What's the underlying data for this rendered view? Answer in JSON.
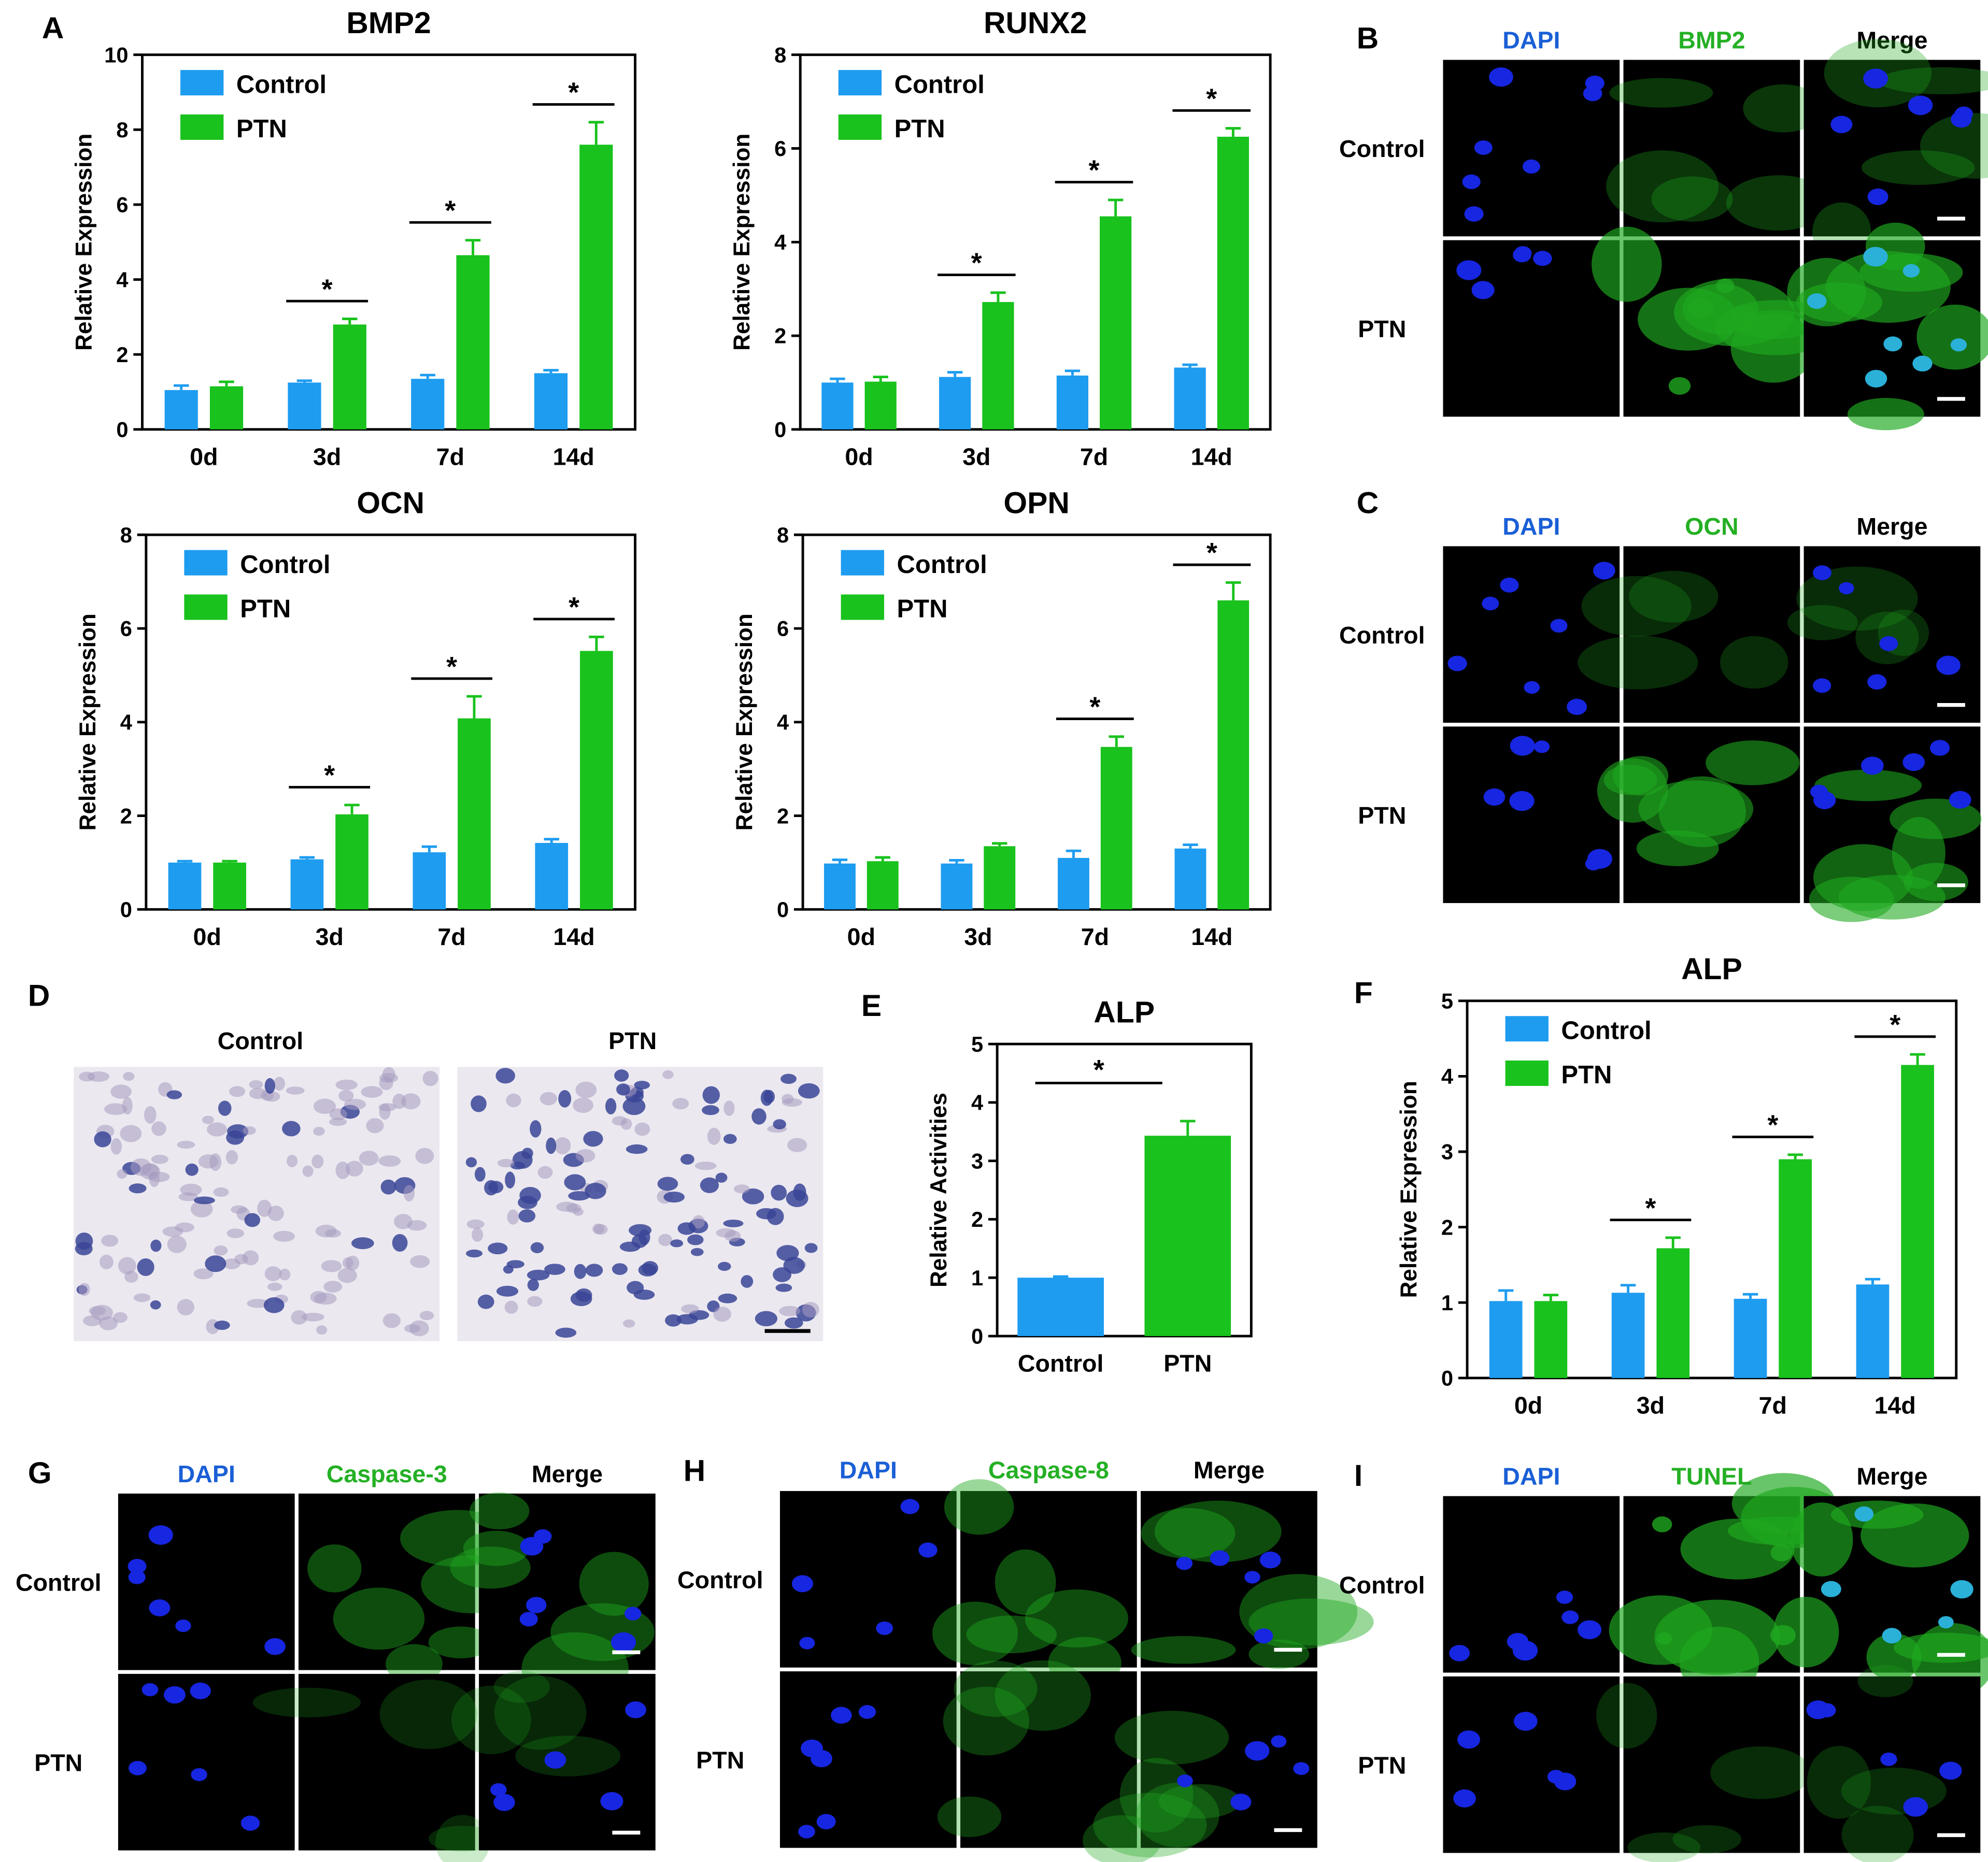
{
  "colors": {
    "control": "#1e9cf0",
    "ptn": "#19c21d",
    "dapi_text": "#1a5fd6",
    "green_text": "#24b024",
    "nucleus": "#1726e0",
    "merge_nucleus": "#2bb0d8",
    "green_cyto": "#1fa81f",
    "alp_bg": "#ebe8f0",
    "alp_cell": "#3a4596"
  },
  "panel_letters": [
    "A",
    "B",
    "C",
    "D",
    "E",
    "F",
    "G",
    "H",
    "I"
  ],
  "legend": {
    "control": "Control",
    "ptn": "PTN"
  },
  "significance_mark": "*",
  "chart_data": [
    {
      "id": "bmp2",
      "type": "bar",
      "title": "BMP2",
      "ylabel": "Relative Expression",
      "categories": [
        "0d",
        "3d",
        "7d",
        "14d"
      ],
      "ylim": [
        0,
        10
      ],
      "yticks": [
        0,
        2,
        4,
        6,
        8,
        10
      ],
      "series": [
        {
          "name": "Control",
          "values": [
            1.05,
            1.25,
            1.35,
            1.5
          ],
          "errors": [
            0.12,
            0.05,
            0.1,
            0.08
          ]
        },
        {
          "name": "PTN",
          "values": [
            1.15,
            2.8,
            4.65,
            7.6
          ],
          "errors": [
            0.12,
            0.15,
            0.4,
            0.6
          ]
        }
      ],
      "significant": [
        false,
        true,
        true,
        true
      ]
    },
    {
      "id": "runx2",
      "type": "bar",
      "title": "RUNX2",
      "ylabel": "Relative Expression",
      "categories": [
        "0d",
        "3d",
        "7d",
        "14d"
      ],
      "ylim": [
        0,
        8
      ],
      "yticks": [
        0,
        2,
        4,
        6,
        8
      ],
      "series": [
        {
          "name": "Control",
          "values": [
            1.0,
            1.12,
            1.15,
            1.32
          ],
          "errors": [
            0.08,
            0.1,
            0.1,
            0.06
          ]
        },
        {
          "name": "PTN",
          "values": [
            1.02,
            2.72,
            4.55,
            6.25
          ],
          "errors": [
            0.1,
            0.2,
            0.35,
            0.18
          ]
        }
      ],
      "significant": [
        false,
        true,
        true,
        true
      ]
    },
    {
      "id": "ocn",
      "type": "bar",
      "title": "OCN",
      "ylabel": "Relative Expression",
      "categories": [
        "0d",
        "3d",
        "7d",
        "14d"
      ],
      "ylim": [
        0,
        8
      ],
      "yticks": [
        0,
        2,
        4,
        6,
        8
      ],
      "series": [
        {
          "name": "Control",
          "values": [
            1.0,
            1.07,
            1.22,
            1.42
          ],
          "errors": [
            0.03,
            0.04,
            0.12,
            0.08
          ]
        },
        {
          "name": "PTN",
          "values": [
            1.0,
            2.03,
            4.08,
            5.52
          ],
          "errors": [
            0.03,
            0.2,
            0.47,
            0.3
          ]
        }
      ],
      "significant": [
        false,
        true,
        true,
        true
      ]
    },
    {
      "id": "opn",
      "type": "bar",
      "title": "OPN",
      "ylabel": "Relative Expression",
      "categories": [
        "0d",
        "3d",
        "7d",
        "14d"
      ],
      "ylim": [
        0,
        8
      ],
      "yticks": [
        0,
        2,
        4,
        6,
        8
      ],
      "series": [
        {
          "name": "Control",
          "values": [
            0.98,
            0.98,
            1.1,
            1.3
          ],
          "errors": [
            0.08,
            0.07,
            0.15,
            0.08
          ]
        },
        {
          "name": "PTN",
          "values": [
            1.03,
            1.35,
            3.47,
            6.6
          ],
          "errors": [
            0.08,
            0.06,
            0.22,
            0.38
          ]
        }
      ],
      "significant": [
        false,
        false,
        true,
        true
      ]
    },
    {
      "id": "alp_activity",
      "type": "bar",
      "title": "ALP",
      "ylabel": "Relative Activities",
      "categories": [
        "Control",
        "PTN"
      ],
      "ylim": [
        0,
        5
      ],
      "yticks": [
        0,
        1,
        2,
        3,
        4,
        5
      ],
      "values": [
        1.0,
        3.43
      ],
      "errors": [
        0.02,
        0.25
      ],
      "significant": true
    },
    {
      "id": "alp_expression",
      "type": "bar",
      "title": "ALP",
      "ylabel": "Relative Expression",
      "categories": [
        "0d",
        "3d",
        "7d",
        "14d"
      ],
      "ylim": [
        0,
        5
      ],
      "yticks": [
        0,
        1,
        2,
        3,
        4,
        5
      ],
      "series": [
        {
          "name": "Control",
          "values": [
            1.02,
            1.13,
            1.05,
            1.24
          ],
          "errors": [
            0.14,
            0.1,
            0.06,
            0.07
          ]
        },
        {
          "name": "PTN",
          "values": [
            1.02,
            1.72,
            2.9,
            4.15
          ],
          "errors": [
            0.08,
            0.14,
            0.06,
            0.14
          ]
        }
      ],
      "significant": [
        false,
        true,
        true,
        true
      ]
    }
  ],
  "micrographs": {
    "B": {
      "headers": [
        "DAPI",
        "BMP2",
        "Merge"
      ],
      "rows": [
        "Control",
        "PTN"
      ]
    },
    "C": {
      "headers": [
        "DAPI",
        "OCN",
        "Merge"
      ],
      "rows": [
        "Control",
        "PTN"
      ]
    },
    "D": {
      "labels": [
        "Control",
        "PTN"
      ]
    },
    "G": {
      "headers": [
        "DAPI",
        "Caspase-3",
        "Merge"
      ],
      "rows": [
        "Control",
        "PTN"
      ]
    },
    "H": {
      "headers": [
        "DAPI",
        "Caspase-8",
        "Merge"
      ],
      "rows": [
        "Control",
        "PTN"
      ]
    },
    "I": {
      "headers": [
        "DAPI",
        "TUNEL",
        "Merge"
      ],
      "rows": [
        "Control",
        "PTN"
      ]
    }
  }
}
